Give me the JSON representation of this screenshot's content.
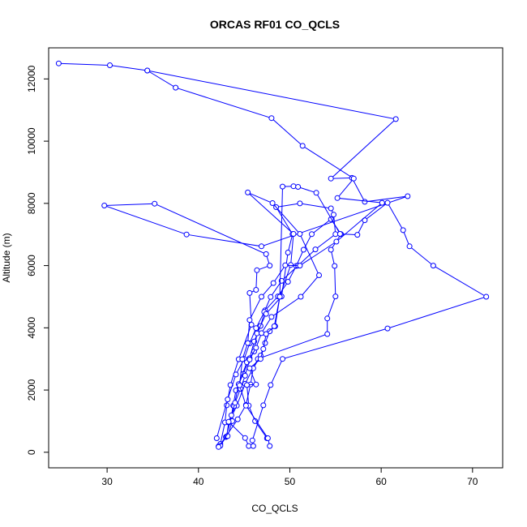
{
  "chart_data": {
    "type": "line",
    "title": "ORCAS RF01 CO_QCLS",
    "xlabel": "CO_QCLS",
    "ylabel": "Altitude (m)",
    "xlim": [
      23.6,
      73.3
    ],
    "ylim": [
      -500,
      13000
    ],
    "xticks": [
      30,
      40,
      50,
      60,
      70
    ],
    "yticks": [
      0,
      2000,
      4000,
      6000,
      8000,
      10000,
      12000
    ],
    "grid": false,
    "marker": "open-circle",
    "color": "#0000ff",
    "series": [
      {
        "name": "",
        "points": [
          [
            24.7,
            12500
          ],
          [
            30.3,
            12440
          ],
          [
            34.4,
            12270
          ],
          [
            61.6,
            10710
          ],
          [
            54.5,
            8800
          ],
          [
            56.8,
            8820
          ],
          [
            58.2,
            8050
          ],
          [
            62.9,
            8230
          ],
          [
            46.9,
            6620
          ],
          [
            38.7,
            7000
          ],
          [
            29.7,
            7930
          ],
          [
            35.2,
            7990
          ],
          [
            47.4,
            6370
          ],
          [
            47.8,
            6000
          ],
          [
            46.4,
            5850
          ],
          [
            46.3,
            5220
          ],
          [
            45.6,
            5120
          ],
          [
            45.8,
            4100
          ],
          [
            44.4,
            2990
          ],
          [
            43.5,
            2160
          ],
          [
            43.1,
            1510
          ],
          [
            42.9,
            960
          ],
          [
            42.4,
            270
          ],
          [
            42.2,
            190
          ]
        ]
      },
      {
        "name": "",
        "points": [
          [
            42.4,
            210
          ],
          [
            43.0,
            490
          ],
          [
            43.5,
            990
          ],
          [
            43.8,
            1500
          ],
          [
            44.1,
            1990
          ],
          [
            44.9,
            2520
          ],
          [
            45.6,
            3020
          ],
          [
            46.1,
            3560
          ],
          [
            46.8,
            4060
          ],
          [
            47.3,
            4560
          ],
          [
            48.7,
            5010
          ],
          [
            49.8,
            5480
          ],
          [
            50.7,
            5990
          ],
          [
            51.5,
            6510
          ],
          [
            52.4,
            7010
          ],
          [
            54.5,
            7490
          ],
          [
            55.6,
            7010
          ],
          [
            54.5,
            6510
          ],
          [
            54.9,
            5990
          ],
          [
            55.0,
            5010
          ],
          [
            54.1,
            4300
          ],
          [
            54.1,
            3800
          ],
          [
            46.5,
            3000
          ],
          [
            45.1,
            2200
          ],
          [
            44.2,
            1500
          ],
          [
            43.3,
            960
          ],
          [
            43.1,
            510
          ]
        ]
      },
      {
        "name": "",
        "points": [
          [
            42.0,
            450
          ],
          [
            43.2,
            1700
          ],
          [
            44.1,
            2500
          ],
          [
            45.0,
            3000
          ],
          [
            45.6,
            3500
          ],
          [
            46.3,
            3990
          ],
          [
            47.2,
            4510
          ],
          [
            47.9,
            4990
          ],
          [
            49.1,
            5510
          ],
          [
            50.9,
            6000
          ],
          [
            52.8,
            6520
          ],
          [
            55.0,
            7010
          ],
          [
            54.8,
            7640
          ],
          [
            54.5,
            7840
          ],
          [
            51.1,
            8000
          ],
          [
            48.5,
            7880
          ],
          [
            50.3,
            7010
          ],
          [
            49.8,
            6420
          ],
          [
            49.1,
            5010
          ],
          [
            47.4,
            4450
          ],
          [
            46.4,
            3820
          ],
          [
            46.1,
            3240
          ],
          [
            45.3,
            2890
          ],
          [
            44.4,
            2190
          ],
          [
            43.9,
            1480
          ],
          [
            43.7,
            1000
          ],
          [
            43.2,
            520
          ]
        ]
      },
      {
        "name": "",
        "points": [
          [
            42.2,
            170
          ],
          [
            44.3,
            1060
          ],
          [
            45.2,
            1520
          ],
          [
            45.7,
            2180
          ],
          [
            46.0,
            2700
          ],
          [
            46.8,
            3110
          ],
          [
            47.3,
            3510
          ],
          [
            47.8,
            3890
          ],
          [
            48.4,
            4050
          ],
          [
            48.9,
            5000
          ],
          [
            50.1,
            6020
          ],
          [
            50.4,
            7020
          ],
          [
            45.4,
            8350
          ],
          [
            48.1,
            8010
          ],
          [
            51.1,
            7020
          ],
          [
            53.2,
            5690
          ],
          [
            51.2,
            5000
          ],
          [
            48.0,
            4350
          ],
          [
            46.9,
            3830
          ],
          [
            46.3,
            3360
          ],
          [
            45.6,
            2980
          ],
          [
            45.1,
            2460
          ],
          [
            44.6,
            2040
          ],
          [
            44.0,
            1590
          ],
          [
            43.6,
            1190
          ],
          [
            43.3,
            980
          ],
          [
            45.1,
            460
          ],
          [
            45.5,
            200
          ]
        ]
      },
      {
        "name": "",
        "points": [
          [
            47.5,
            450
          ],
          [
            46.2,
            1000
          ],
          [
            45.5,
            1500
          ],
          [
            45.3,
            2160
          ],
          [
            46.3,
            2180
          ],
          [
            45.6,
            2700
          ],
          [
            46.8,
            3000
          ],
          [
            47.1,
            3320
          ],
          [
            47.4,
            3800
          ],
          [
            48.3,
            4050
          ],
          [
            48.9,
            5000
          ],
          [
            49.2,
            8540
          ],
          [
            50.4,
            8550
          ],
          [
            50.9,
            8530
          ],
          [
            52.9,
            8340
          ],
          [
            55.5,
            7020
          ],
          [
            57.4,
            6990
          ],
          [
            58.2,
            7460
          ],
          [
            60.7,
            8020
          ],
          [
            62.4,
            7140
          ],
          [
            63.1,
            6620
          ],
          [
            65.7,
            6000
          ],
          [
            71.5,
            5000
          ],
          [
            60.7,
            3980
          ],
          [
            49.2,
            3000
          ],
          [
            47.9,
            2160
          ],
          [
            47.1,
            1510
          ],
          [
            45.9,
            380
          ],
          [
            46.0,
            200
          ]
        ]
      },
      {
        "name": "",
        "points": [
          [
            47.8,
            200
          ],
          [
            47.6,
            450
          ],
          [
            45.2,
            1500
          ],
          [
            44.5,
            2150
          ],
          [
            44.8,
            2990
          ],
          [
            45.4,
            3510
          ],
          [
            45.6,
            4250
          ],
          [
            46.9,
            5000
          ],
          [
            48.2,
            5440
          ],
          [
            49.5,
            6010
          ],
          [
            51.1,
            6000
          ],
          [
            55.1,
            6770
          ],
          [
            60.1,
            8020
          ],
          [
            55.2,
            8170
          ],
          [
            57.0,
            8800
          ],
          [
            51.4,
            9850
          ],
          [
            48.0,
            10740
          ],
          [
            37.5,
            11720
          ],
          [
            34.4,
            12270
          ]
        ]
      }
    ]
  }
}
